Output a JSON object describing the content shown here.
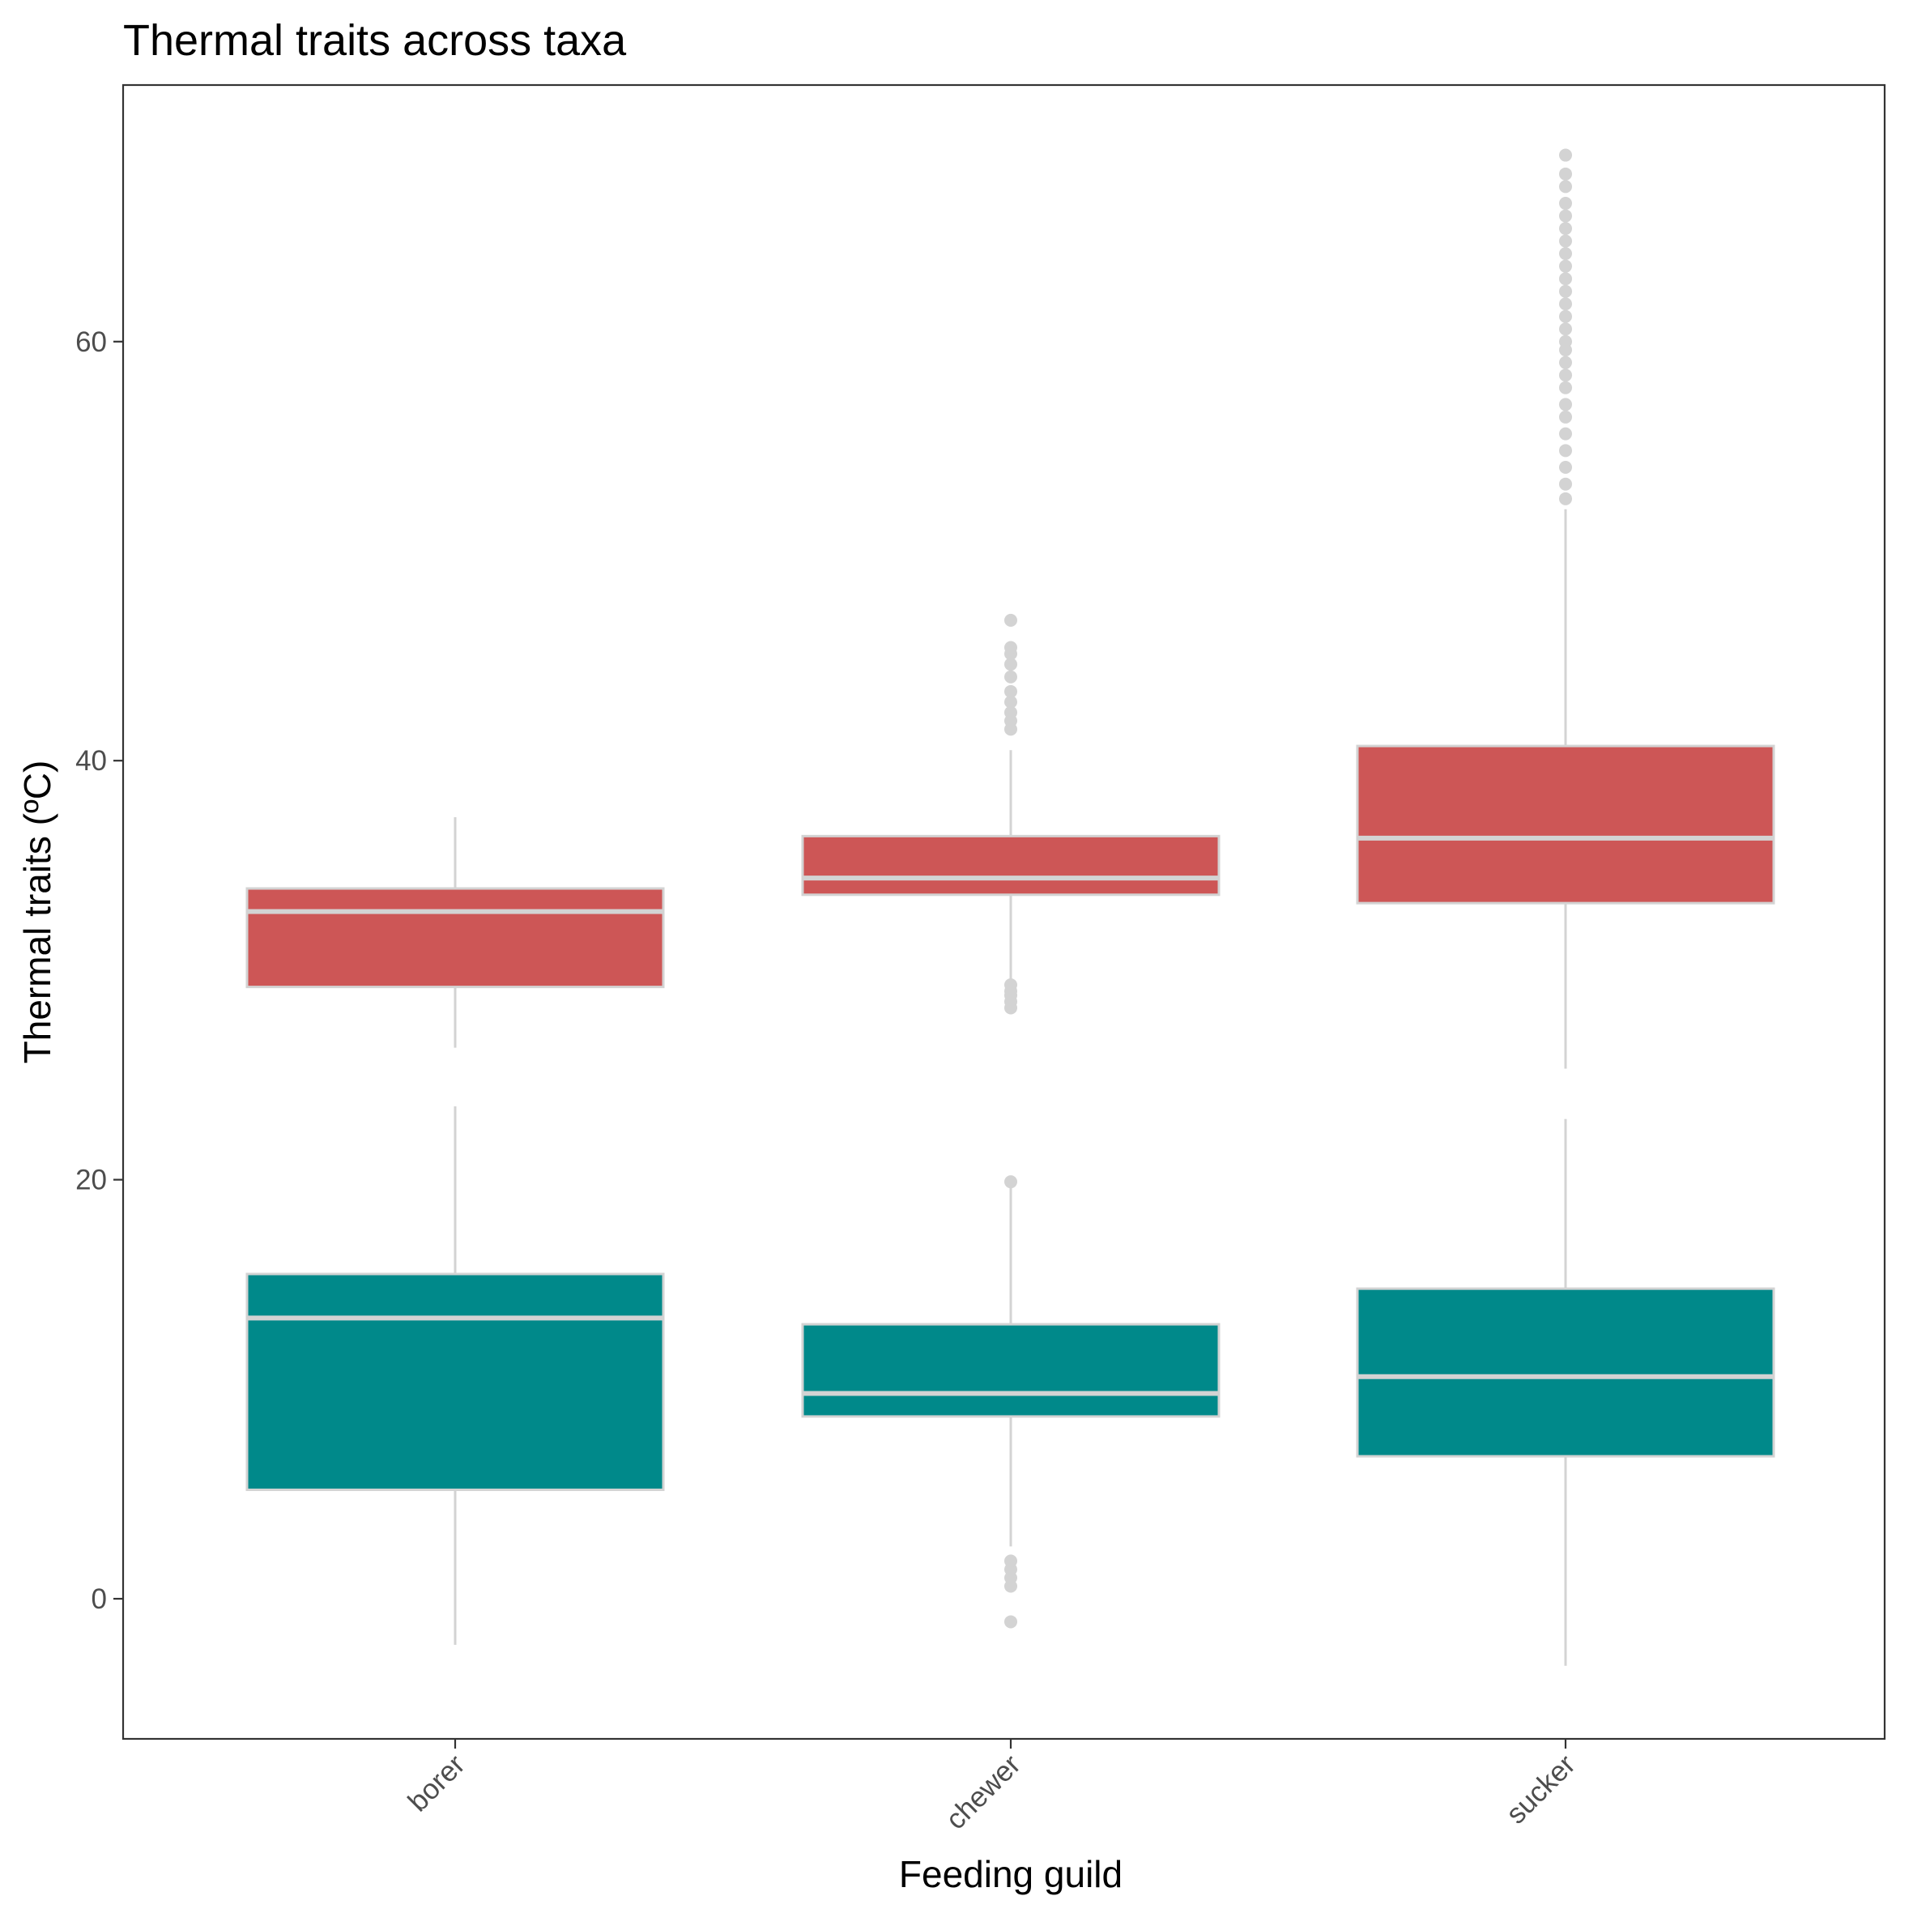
{
  "chart_data": {
    "type": "boxplot",
    "title": "Thermal traits across taxa",
    "xlabel": "Feeding guild",
    "ylabel": "Thermal traits (ºC)",
    "categories": [
      "borer",
      "chewer",
      "sucker"
    ],
    "ylim": [
      -6.7,
      72.3
    ],
    "yticks": [
      0,
      20,
      40,
      60
    ],
    "grid": false,
    "legend": "none",
    "colors": {
      "upper": "#cd5656",
      "lower": "#00898a",
      "box_outline": "#d3d3d3",
      "whisker": "#d3d3d3",
      "outlier": "#d3d3d3",
      "panel_border": "#333333",
      "tick_text": "#4d4d4d"
    },
    "series": [
      {
        "color": "#cd5656",
        "boxes": [
          {
            "category": "borer",
            "whisker_low": 26.3,
            "q1": 29.2,
            "median": 32.8,
            "q3": 33.9,
            "whisker_high": 37.3,
            "outliers": []
          },
          {
            "category": "chewer",
            "whisker_low": 29.5,
            "q1": 33.6,
            "median": 34.4,
            "q3": 36.4,
            "whisker_high": 40.5,
            "outliers": [
              28.2,
              28.5,
              28.8,
              29.0,
              29.3,
              41.5,
              41.9,
              42.3,
              42.8,
              43.3,
              44.0,
              44.6,
              45.1,
              45.4,
              46.7
            ]
          },
          {
            "category": "sucker",
            "whisker_low": 25.3,
            "q1": 33.2,
            "median": 36.3,
            "q3": 40.7,
            "whisker_high": 52.0,
            "outliers": [
              52.5,
              53.2,
              54.0,
              54.8,
              55.6,
              56.4,
              57.0,
              57.8,
              58.4,
              59.0,
              59.6,
              60.0,
              60.6,
              61.2,
              61.8,
              62.4,
              63.0,
              63.6,
              64.2,
              64.8,
              65.4,
              66.0,
              66.6,
              67.4,
              68.0,
              68.9
            ]
          }
        ]
      },
      {
        "color": "#00898a",
        "boxes": [
          {
            "category": "borer",
            "whisker_low": -2.2,
            "q1": 5.2,
            "median": 13.4,
            "q3": 15.5,
            "whisker_high": 23.5,
            "outliers": []
          },
          {
            "category": "chewer",
            "whisker_low": 2.5,
            "q1": 8.7,
            "median": 9.8,
            "q3": 13.1,
            "whisker_high": 19.6,
            "outliers": [
              -1.1,
              0.6,
              1.0,
              1.4,
              1.8,
              19.9
            ]
          },
          {
            "category": "sucker",
            "whisker_low": -3.2,
            "q1": 6.8,
            "median": 10.6,
            "q3": 14.8,
            "whisker_high": 22.9,
            "outliers": []
          }
        ]
      }
    ]
  }
}
